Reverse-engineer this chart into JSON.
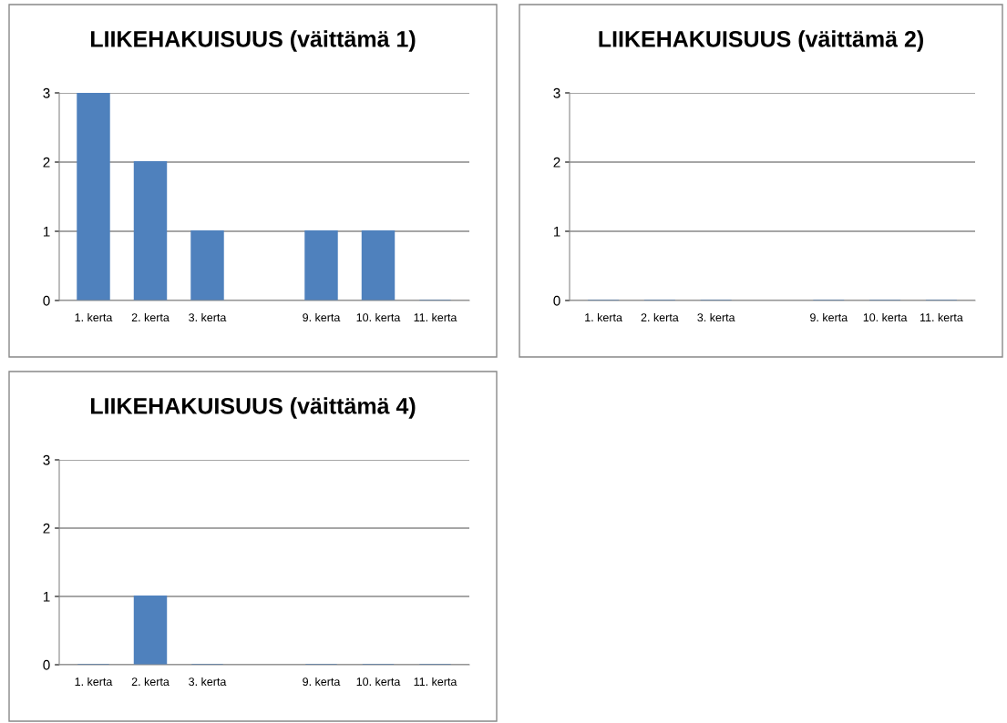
{
  "chart_data": [
    {
      "type": "bar",
      "title": "LIIKEHAKUISUUS (väittämä 1)",
      "categories": [
        "1. kerta",
        "2. kerta",
        "3. kerta",
        null,
        "9. kerta",
        "10. kerta",
        "11. kerta"
      ],
      "values": [
        3,
        2,
        1,
        null,
        1,
        1,
        0
      ],
      "color": "#4f81bd",
      "ylim": [
        0,
        3
      ],
      "yticks": [
        0,
        1,
        2,
        3
      ],
      "grid": "y"
    },
    {
      "type": "bar",
      "title": "LIIKEHAKUISUUS (väittämä 2)",
      "categories": [
        "1. kerta",
        "2. kerta",
        "3. kerta",
        null,
        "9. kerta",
        "10. kerta",
        "11. kerta"
      ],
      "values": [
        0,
        0,
        0,
        null,
        0,
        0,
        0
      ],
      "color": "#4f81bd",
      "ylim": [
        0,
        3
      ],
      "yticks": [
        0,
        1,
        2,
        3
      ],
      "grid": "y"
    },
    {
      "type": "bar",
      "title": "LIIKEHAKUISUUS (väittämä 4)",
      "categories": [
        "1. kerta",
        "2. kerta",
        "3. kerta",
        null,
        "9. kerta",
        "10. kerta",
        "11. kerta"
      ],
      "values": [
        0,
        1,
        0,
        null,
        0,
        0,
        0
      ],
      "color": "#4f81bd",
      "ylim": [
        0,
        3
      ],
      "yticks": [
        0,
        1,
        2,
        3
      ],
      "grid": "y"
    }
  ]
}
